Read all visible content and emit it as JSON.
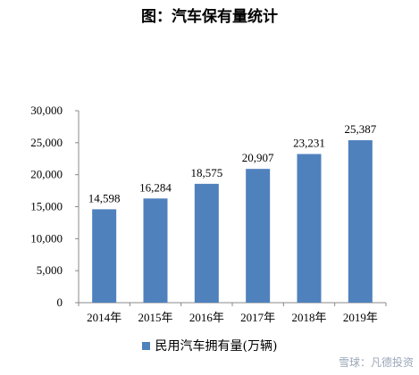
{
  "chart_data": {
    "type": "bar",
    "title": "图：汽车保有量统计",
    "categories": [
      "2014年",
      "2015年",
      "2016年",
      "2017年",
      "2018年",
      "2019年"
    ],
    "series": [
      {
        "name": "民用汽车拥有量(万辆)",
        "values": [
          14598,
          16284,
          18575,
          20907,
          23231,
          25387
        ],
        "color": "#4f81bd"
      }
    ],
    "data_labels": [
      "14,598",
      "16,284",
      "18,575",
      "20,907",
      "23,231",
      "25,387"
    ],
    "ylim": [
      0,
      30000
    ],
    "yticks": [
      0,
      5000,
      10000,
      15000,
      20000,
      25000,
      30000
    ],
    "ytick_labels": [
      "0",
      "5,000",
      "10,000",
      "15,000",
      "20,000",
      "25,000",
      "30,000"
    ],
    "grid": false,
    "legend_position": "bottom"
  },
  "watermark": "雪球：凡德投资"
}
